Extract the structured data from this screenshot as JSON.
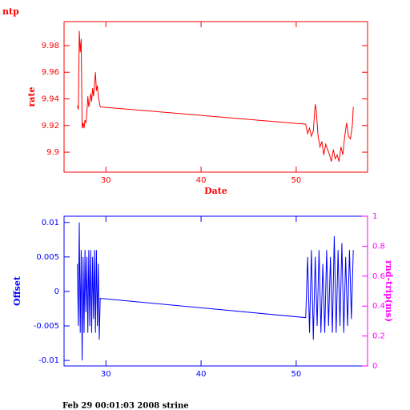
{
  "chart_data": [
    {
      "type": "line",
      "title": "ntp",
      "xlabel": "Date",
      "ylabel": "rate",
      "color": "#ff0000",
      "x": [
        27.0,
        27.1,
        27.2,
        27.3,
        27.4,
        27.5,
        27.6,
        27.7,
        27.8,
        27.9,
        28.0,
        28.1,
        28.2,
        28.3,
        28.4,
        28.5,
        28.6,
        28.7,
        28.8,
        28.9,
        29.0,
        29.1,
        29.2,
        29.4,
        51.0,
        51.2,
        51.4,
        51.6,
        51.8,
        52.0,
        52.1,
        52.3,
        52.5,
        52.7,
        52.9,
        53.1,
        53.3,
        53.5,
        53.7,
        53.9,
        54.1,
        54.3,
        54.5,
        54.7,
        54.9,
        55.1,
        55.3,
        55.5,
        55.7,
        55.9,
        56.0
      ],
      "series": [
        {
          "color": "#ff0000",
          "values": [
            9.935,
            9.932,
            9.991,
            9.975,
            9.985,
            9.918,
            9.922,
            9.918,
            9.924,
            9.922,
            9.93,
            9.942,
            9.934,
            9.938,
            9.944,
            9.938,
            9.948,
            9.942,
            9.951,
            9.96,
            9.946,
            9.95,
            9.942,
            9.934,
            9.921,
            9.914,
            9.918,
            9.912,
            9.916,
            9.936,
            9.932,
            9.912,
            9.904,
            9.908,
            9.898,
            9.906,
            9.902,
            9.898,
            9.893,
            9.902,
            9.895,
            9.898,
            9.893,
            9.904,
            9.898,
            9.912,
            9.922,
            9.912,
            9.91,
            9.92,
            9.934
          ]
        }
      ],
      "xlim": [
        25.6,
        57.5
      ],
      "xticks": [
        30,
        40,
        50
      ],
      "ylim": [
        9.885,
        9.998
      ],
      "yticks": [
        9.9,
        9.92,
        9.94,
        9.96,
        9.98
      ]
    },
    {
      "type": "line",
      "ylabel": "Offset",
      "y2label": "rnd-trip(ms)",
      "color": "#0000ff",
      "y2color": "#ff00ff",
      "x": [
        27.0,
        27.1,
        27.2,
        27.3,
        27.4,
        27.5,
        27.6,
        27.7,
        27.8,
        27.9,
        28.0,
        28.1,
        28.2,
        28.3,
        28.4,
        28.5,
        28.6,
        28.7,
        28.8,
        28.9,
        29.0,
        29.1,
        29.2,
        29.3,
        29.4,
        51.0,
        51.2,
        51.4,
        51.6,
        51.8,
        52.0,
        52.2,
        52.4,
        52.6,
        52.8,
        53.0,
        53.2,
        53.4,
        53.6,
        53.8,
        54.0,
        54.2,
        54.4,
        54.6,
        54.8,
        55.0,
        55.2,
        55.4,
        55.6,
        55.8,
        56.0
      ],
      "series": [
        {
          "color": "#0000ff",
          "values": [
            0.004,
            -0.005,
            0.01,
            -0.006,
            0.006,
            -0.01,
            0.005,
            -0.006,
            0.006,
            -0.003,
            0.005,
            -0.006,
            0.006,
            -0.005,
            0.006,
            -0.006,
            0.005,
            -0.004,
            0.006,
            -0.006,
            0.006,
            -0.005,
            0.004,
            -0.007,
            -0.001,
            -0.0038,
            0.005,
            -0.006,
            0.006,
            -0.007,
            0.005,
            -0.005,
            0.006,
            -0.006,
            0.004,
            -0.006,
            0.006,
            -0.005,
            0.005,
            -0.006,
            0.008,
            -0.006,
            0.006,
            -0.005,
            0.007,
            -0.006,
            0.005,
            -0.005,
            0.006,
            -0.004,
            0.006
          ]
        }
      ],
      "xlim": [
        25.6,
        57.5
      ],
      "xticks": [
        30,
        40,
        50
      ],
      "ylim": [
        -0.0108,
        0.0109
      ],
      "yticks": [
        -0.01,
        -0.005,
        0,
        0.005,
        0.01
      ],
      "y2lim": [
        0,
        1
      ],
      "y2ticks": [
        0,
        0.2,
        0.4,
        0.6,
        0.8,
        1
      ]
    }
  ],
  "footer": "Feb 29 00:01:03 2008 strine"
}
